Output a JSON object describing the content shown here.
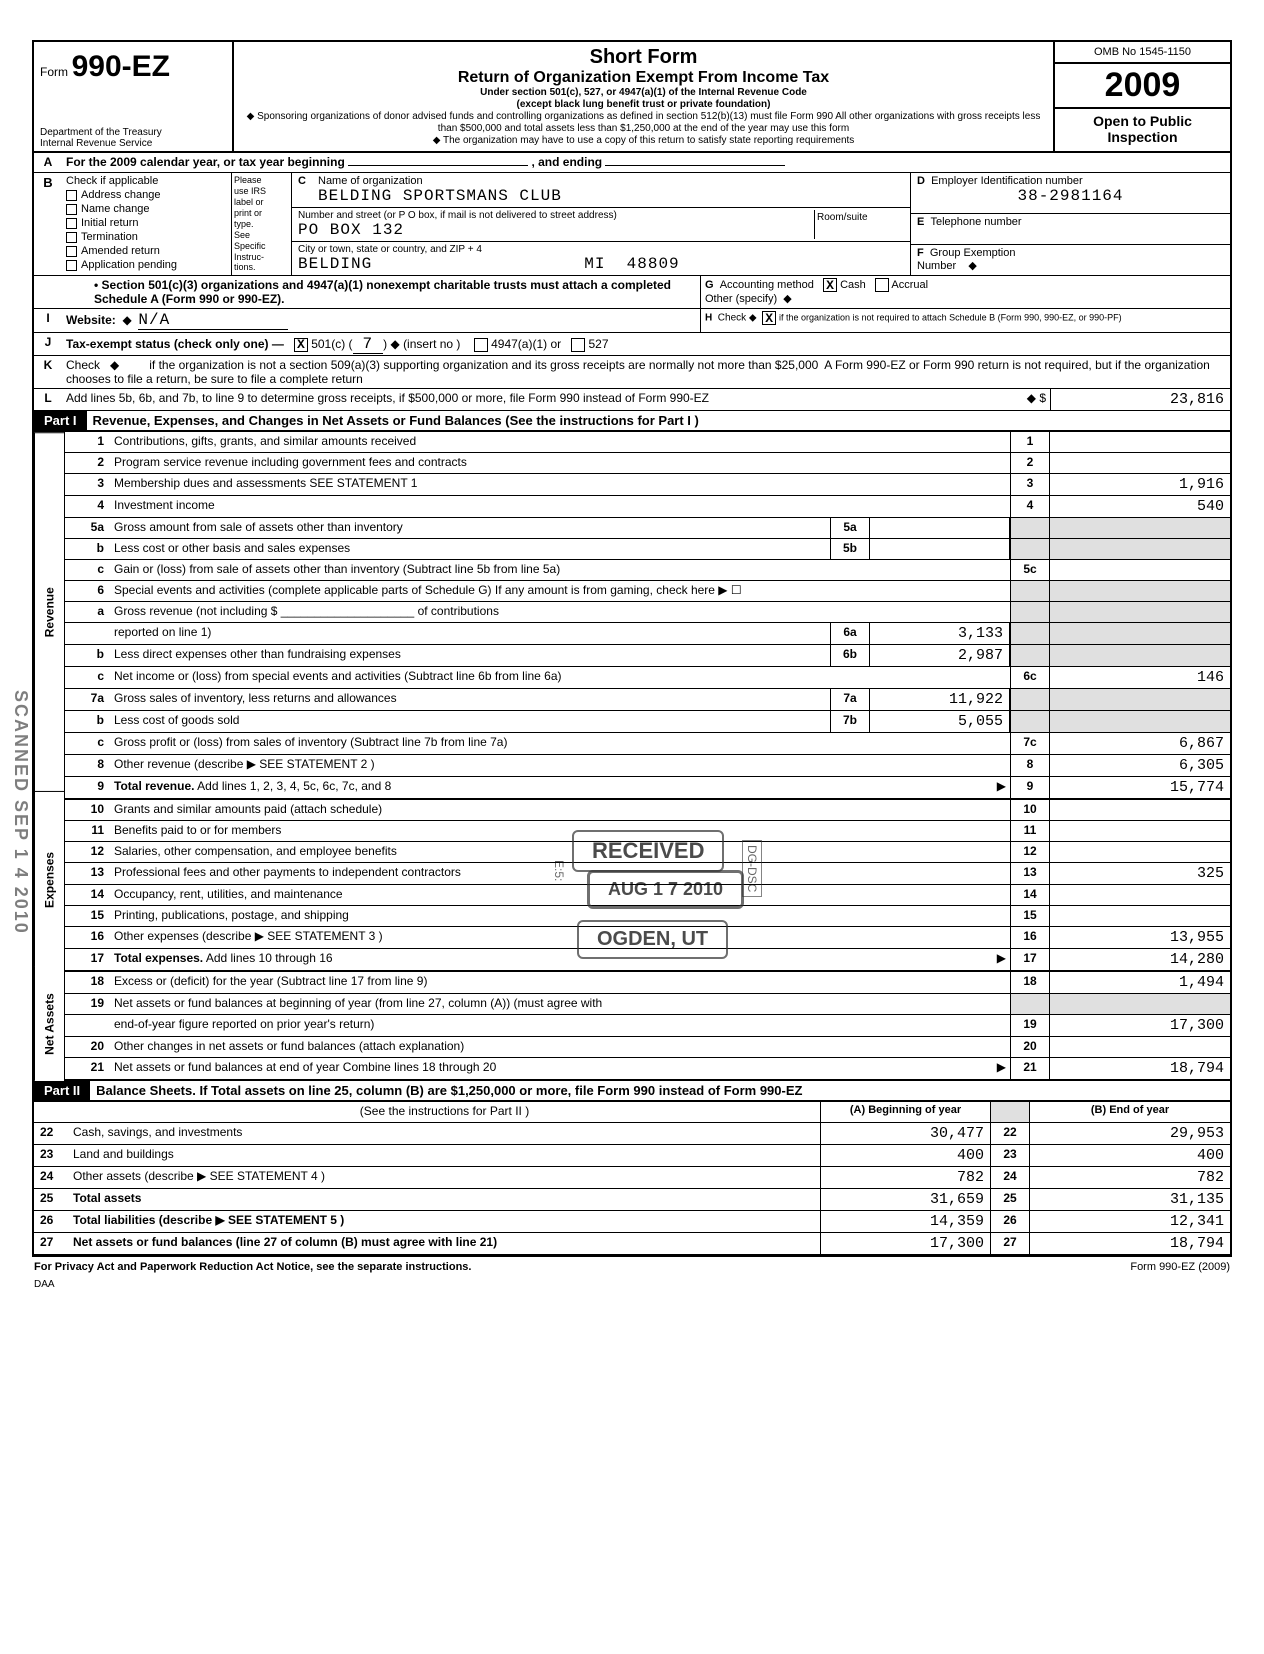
{
  "form": {
    "prefix": "Form",
    "number": "990-EZ",
    "dept": "Department of the Treasury\nInternal Revenue Service",
    "title_main": "Short Form",
    "title_sub": "Return of Organization Exempt From Income Tax",
    "under": "Under section 501(c), 527, or 4947(a)(1) of the Internal Revenue Code\n(except black lung benefit trust or private foundation)",
    "sponsor": "Sponsoring organizations of donor advised funds and controlling organizations as defined in section 512(b)(13) must file Form 990  All other organizations with gross receipts less than $500,000 and total assets less than $1,250,000 at the end of the year may use this form",
    "copy_note": "The organization may have to use a copy of this return to satisfy state reporting requirements",
    "omb": "OMB No 1545-1150",
    "year": "2009",
    "open": "Open to Public\nInspection"
  },
  "A_line": "For the 2009 calendar year, or tax year beginning",
  "A_end": ", and ending",
  "B": {
    "header": "Check if applicable",
    "items": [
      "Address change",
      "Name change",
      "Initial return",
      "Termination",
      "Amended return",
      "Application pending"
    ]
  },
  "irs_col": [
    "Please",
    "use IRS",
    "label or",
    "print or",
    "type.",
    "See",
    "Specific",
    "Instruc-",
    "tions."
  ],
  "C": {
    "label": "Name of organization",
    "name": "BELDING SPORTSMANS CLUB",
    "street_label": "Number and street (or P O  box, if mail is not delivered to street address)",
    "street": "PO BOX 132",
    "city_label": "City or town, state or country, and ZIP + 4",
    "city": "BELDING                    MI  48809",
    "room": "Room/suite"
  },
  "D": {
    "label": "Employer Identification number",
    "val": "38-2981164"
  },
  "E": {
    "label": "Telephone number",
    "val": ""
  },
  "F": {
    "label": "Group Exemption",
    "sub": "Number"
  },
  "bullet501": "• Section 501(c)(3) organizations and 4947(a)(1) nonexempt charitable trusts must attach a completed Schedule A (Form 990 or 990-EZ).",
  "G": {
    "label": "Accounting method",
    "cash": "Cash",
    "accrual": "Accrual",
    "other": "Other (specify)"
  },
  "I": {
    "label": "Website:",
    "val": "N/A"
  },
  "H": {
    "text": "Check ◆",
    "note": "if the organization is not required to attach Schedule B (Form 990, 990-EZ, or 990-PF)"
  },
  "J": {
    "label": "Tax-exempt status (check only one) —",
    "insert": "(insert no )",
    "501c": "501(c) (",
    "num": "7",
    "close": ") ◆",
    "a": "4947(a)(1) or",
    "b": "527"
  },
  "K": "Check   ◆         if the organization is not a section 509(a)(3) supporting organization and its gross receipts are normally not more than $25,000  A Form 990-EZ or Form 990 return is not required, but if the organization chooses to file a return, be sure to file a complete return",
  "L": {
    "text": "Add lines 5b, 6b, and 7b, to line 9 to determine gross receipts, if $500,000 or more, file Form 990 instead of Form 990-EZ",
    "arrow": "◆ $",
    "val": "23,816"
  },
  "part1_title": "Revenue, Expenses, and Changes in Net Assets or Fund Balances (See the instructions for Part I )",
  "part2_title": "Balance Sheets. If Total assets on line 25, column (B) are $1,250,000 or more, file Form 990 instead of Form 990-EZ",
  "sections": {
    "revenue": "Revenue",
    "expenses": "Expenses",
    "netassets": "Net Assets"
  },
  "lines": [
    {
      "n": "1",
      "d": "Contributions, gifts, grants, and similar amounts received",
      "en": "1",
      "ev": ""
    },
    {
      "n": "2",
      "d": "Program service revenue including government fees and contracts",
      "en": "2",
      "ev": ""
    },
    {
      "n": "3",
      "d": "Membership dues and assessments                                                                    SEE  STATEMENT  1",
      "en": "3",
      "ev": "1,916"
    },
    {
      "n": "4",
      "d": "Investment income",
      "en": "4",
      "ev": "540"
    },
    {
      "n": "5a",
      "d": "Gross amount from sale of assets other than inventory",
      "mn": "5a",
      "mv": ""
    },
    {
      "n": "b",
      "d": "Less  cost or other basis and sales expenses",
      "mn": "5b",
      "mv": ""
    },
    {
      "n": "c",
      "d": "Gain or (loss) from sale of assets other than inventory (Subtract line 5b from line 5a)",
      "en": "5c",
      "ev": ""
    },
    {
      "n": "6",
      "d": "Special events and activities (complete applicable parts of Schedule G)  If any amount is from gaming, check here       ▶  ☐"
    },
    {
      "n": "a",
      "d": "Gross revenue (not including  $ ____________________ of contributions"
    },
    {
      "n": "",
      "d": "reported on line 1)",
      "mn": "6a",
      "mv": "3,133"
    },
    {
      "n": "b",
      "d": "Less  direct expenses other than fundraising expenses",
      "mn": "6b",
      "mv": "2,987"
    },
    {
      "n": "c",
      "d": "Net income or (loss) from special events and activities (Subtract line 6b from line 6a)",
      "en": "6c",
      "ev": "146"
    },
    {
      "n": "7a",
      "d": "Gross sales of inventory, less returns and allowances",
      "mn": "7a",
      "mv": "11,922"
    },
    {
      "n": "b",
      "d": "Less  cost of goods sold",
      "mn": "7b",
      "mv": "5,055"
    },
    {
      "n": "c",
      "d": "Gross profit or (loss) from sales of inventory (Subtract line 7b from line 7a)",
      "en": "7c",
      "ev": "6,867"
    },
    {
      "n": "8",
      "d": "Other revenue (describe ▶   SEE  STATEMENT  2                                                                                                        )",
      "en": "8",
      "ev": "6,305"
    },
    {
      "n": "9",
      "d": "Total revenue. Add lines 1, 2, 3, 4, 5c, 6c, 7c, and 8",
      "en": "9",
      "ev": "15,774",
      "arrow": true
    },
    {
      "n": "10",
      "d": "Grants and similar amounts paid (attach schedule)",
      "en": "10",
      "ev": ""
    },
    {
      "n": "11",
      "d": "Benefits paid to or for members",
      "en": "11",
      "ev": ""
    },
    {
      "n": "12",
      "d": "Salaries, other compensation, and employee benefits",
      "en": "12",
      "ev": ""
    },
    {
      "n": "13",
      "d": "Professional fees and other payments to independent contractors",
      "en": "13",
      "ev": "325"
    },
    {
      "n": "14",
      "d": "Occupancy, rent, utilities, and maintenance",
      "en": "14",
      "ev": ""
    },
    {
      "n": "15",
      "d": "Printing, publications, postage, and shipping",
      "en": "15",
      "ev": ""
    },
    {
      "n": "16",
      "d": "Other expenses (describe ▶   SEE  STATEMENT  3                                                                                                     )",
      "en": "16",
      "ev": "13,955"
    },
    {
      "n": "17",
      "d": "Total expenses. Add lines 10 through 16",
      "en": "17",
      "ev": "14,280",
      "arrow": true
    },
    {
      "n": "18",
      "d": "Excess or (deficit) for the year (Subtract line 17 from line 9)",
      "en": "18",
      "ev": "1,494"
    },
    {
      "n": "19",
      "d": "Net assets or fund balances at beginning of year (from line 27, column (A)) (must agree with"
    },
    {
      "n": "",
      "d": "end-of-year figure reported on prior year's return)",
      "en": "19",
      "ev": "17,300"
    },
    {
      "n": "20",
      "d": "Other changes in net assets or fund balances (attach explanation)",
      "en": "20",
      "ev": ""
    },
    {
      "n": "21",
      "d": "Net assets or fund balances at end of year  Combine lines 18 through 20",
      "en": "21",
      "ev": "18,794",
      "arrow": true
    }
  ],
  "bs_header": {
    "instr": "(See the instructions for Part II )",
    "a": "(A) Beginning of year",
    "b": "(B) End of year"
  },
  "bs": [
    {
      "n": "22",
      "d": "Cash, savings, and investments",
      "a": "30,477",
      "m": "22",
      "b": "29,953"
    },
    {
      "n": "23",
      "d": "Land and buildings",
      "a": "400",
      "m": "23",
      "b": "400"
    },
    {
      "n": "24",
      "d": "Other assets (describe ▶   SEE  STATEMENT  4                                                                )",
      "a": "782",
      "m": "24",
      "b": "782"
    },
    {
      "n": "25",
      "d": "Total assets",
      "a": "31,659",
      "m": "25",
      "b": "31,135",
      "bold": true
    },
    {
      "n": "26",
      "d": "Total liabilities (describe ▶   SEE  STATEMENT  5                                                          )",
      "a": "14,359",
      "m": "26",
      "b": "12,341",
      "bold": true
    },
    {
      "n": "27",
      "d": "Net assets or fund balances (line 27 of column (B) must agree with line 21)",
      "a": "17,300",
      "m": "27",
      "b": "18,794",
      "bold": true
    }
  ],
  "footer": {
    "left": "For Privacy Act and Paperwork Reduction Act Notice, see the separate instructions.",
    "mid": "DAA",
    "right": "Form 990-EZ (2009)"
  },
  "stamps": {
    "received": "RECEIVED",
    "date": "AUG 1 7 2010",
    "ogden": "OGDEN, UT",
    "side": "E:5:",
    "side2": "DG-DSC",
    "scanned": "SCANNED SEP 1 4 2010"
  }
}
